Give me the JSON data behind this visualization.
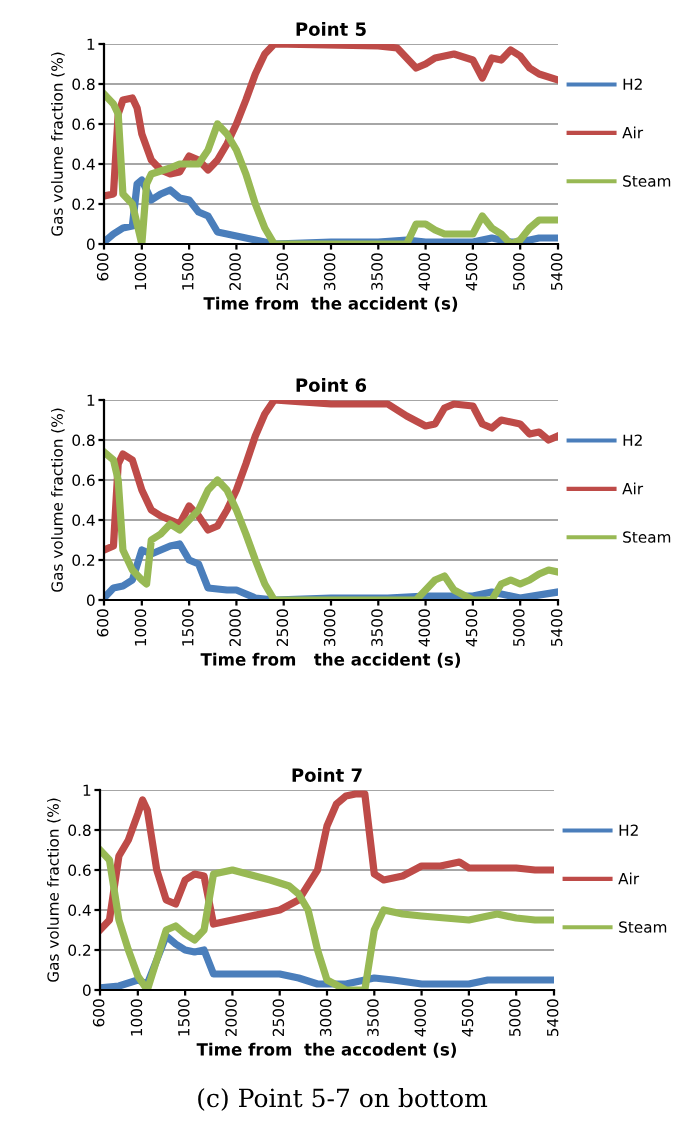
{
  "chart_data": [
    {
      "type": "line",
      "title": "Point 5",
      "xlabel": "Time from  the accident (s)",
      "ylabel": "Gas volume fraction (%)",
      "xlim": [
        600,
        5400
      ],
      "xticks": [
        600,
        1000,
        1500,
        2000,
        2500,
        3000,
        3500,
        4000,
        4500,
        5000,
        5400
      ],
      "ylim": [
        0,
        1
      ],
      "yticks": [
        0,
        {
          "value": 0.2,
          "label": "0.2"
        },
        {
          "value": 0.4,
          "label": "0.4"
        },
        {
          "value": 0.6,
          "label": "0.6"
        },
        {
          "value": 0.8,
          "label": "0.8"
        },
        1
      ],
      "grid": "y",
      "legend": "right",
      "marker": "none",
      "line_style": "solid",
      "series": [
        {
          "name": "H2",
          "color": "#4a7ebb",
          "x": [
            600,
            700,
            800,
            900,
            950,
            1000,
            1100,
            1200,
            1300,
            1400,
            1500,
            1600,
            1700,
            1800,
            1900,
            2000,
            2200,
            2400,
            3000,
            3500,
            3800,
            4000,
            4500,
            4700,
            4900,
            5000,
            5200,
            5400
          ],
          "values": [
            0.01,
            0.05,
            0.08,
            0.09,
            0.3,
            0.32,
            0.22,
            0.25,
            0.27,
            0.23,
            0.22,
            0.16,
            0.14,
            0.06,
            0.05,
            0.04,
            0.02,
            0.0,
            0.01,
            0.01,
            0.02,
            0.01,
            0.01,
            0.03,
            0.01,
            0.01,
            0.03,
            0.03
          ]
        },
        {
          "name": "Air",
          "color": "#be4b48",
          "x": [
            600,
            700,
            750,
            800,
            900,
            950,
            1000,
            1100,
            1200,
            1300,
            1400,
            1500,
            1600,
            1700,
            1800,
            1900,
            2000,
            2100,
            2200,
            2300,
            2400,
            3500,
            3700,
            3900,
            4000,
            4100,
            4300,
            4500,
            4600,
            4700,
            4800,
            4900,
            5000,
            5100,
            5200,
            5400
          ],
          "values": [
            0.24,
            0.25,
            0.65,
            0.72,
            0.73,
            0.68,
            0.55,
            0.42,
            0.37,
            0.35,
            0.36,
            0.44,
            0.42,
            0.37,
            0.42,
            0.5,
            0.6,
            0.72,
            0.85,
            0.95,
            1.0,
            0.99,
            0.98,
            0.88,
            0.9,
            0.93,
            0.95,
            0.92,
            0.83,
            0.93,
            0.92,
            0.97,
            0.94,
            0.88,
            0.85,
            0.82
          ]
        },
        {
          "name": "Steam",
          "color": "#98b954",
          "x": [
            600,
            700,
            750,
            800,
            900,
            950,
            1000,
            1050,
            1100,
            1300,
            1400,
            1600,
            1700,
            1800,
            1900,
            2000,
            2100,
            2200,
            2300,
            2400,
            3800,
            3900,
            4000,
            4100,
            4200,
            4500,
            4600,
            4700,
            4800,
            4900,
            5000,
            5100,
            5200,
            5400
          ],
          "values": [
            0.75,
            0.7,
            0.65,
            0.25,
            0.2,
            0.1,
            0.0,
            0.3,
            0.35,
            0.38,
            0.4,
            0.4,
            0.47,
            0.6,
            0.55,
            0.47,
            0.35,
            0.2,
            0.08,
            0.0,
            0.0,
            0.1,
            0.1,
            0.07,
            0.05,
            0.05,
            0.14,
            0.08,
            0.05,
            0.0,
            0.02,
            0.08,
            0.12,
            0.12
          ]
        }
      ]
    },
    {
      "type": "line",
      "title": "Point 6",
      "xlabel": "Time from   the accident (s)",
      "ylabel": "Gas volume fraction (%)",
      "xlim": [
        600,
        5400
      ],
      "xticks": [
        600,
        1000,
        1500,
        2000,
        2500,
        3000,
        3500,
        4000,
        4500,
        5000,
        5400
      ],
      "ylim": [
        0,
        1
      ],
      "yticks": [
        0,
        {
          "value": 0.2,
          "label": "0.2"
        },
        {
          "value": 0.4,
          "label": "0.4"
        },
        {
          "value": 0.6,
          "label": "0.6"
        },
        {
          "value": 0.8,
          "label": "0.8"
        },
        1
      ],
      "grid": "y",
      "legend": "right",
      "marker": "none",
      "line_style": "solid",
      "series": [
        {
          "name": "H2",
          "color": "#4a7ebb",
          "x": [
            600,
            700,
            800,
            900,
            1000,
            1100,
            1200,
            1300,
            1400,
            1500,
            1600,
            1700,
            1900,
            2000,
            2200,
            2400,
            3000,
            3600,
            4000,
            4500,
            4700,
            5000,
            5400
          ],
          "values": [
            0.01,
            0.06,
            0.07,
            0.1,
            0.25,
            0.23,
            0.25,
            0.27,
            0.28,
            0.2,
            0.18,
            0.06,
            0.05,
            0.05,
            0.01,
            0.0,
            0.01,
            0.01,
            0.02,
            0.02,
            0.04,
            0.01,
            0.04
          ]
        },
        {
          "name": "Air",
          "color": "#be4b48",
          "x": [
            600,
            700,
            750,
            800,
            900,
            1000,
            1100,
            1200,
            1300,
            1400,
            1500,
            1600,
            1700,
            1800,
            1900,
            2000,
            2100,
            2200,
            2300,
            2400,
            3000,
            3600,
            3800,
            4000,
            4100,
            4200,
            4300,
            4500,
            4600,
            4700,
            4800,
            5000,
            5100,
            5200,
            5300,
            5400
          ],
          "values": [
            0.25,
            0.27,
            0.68,
            0.73,
            0.7,
            0.55,
            0.45,
            0.42,
            0.4,
            0.38,
            0.47,
            0.42,
            0.35,
            0.37,
            0.45,
            0.55,
            0.68,
            0.82,
            0.93,
            1.0,
            0.98,
            0.98,
            0.92,
            0.87,
            0.88,
            0.96,
            0.98,
            0.97,
            0.88,
            0.86,
            0.9,
            0.88,
            0.83,
            0.84,
            0.8,
            0.82
          ]
        },
        {
          "name": "Steam",
          "color": "#98b954",
          "x": [
            600,
            700,
            750,
            800,
            900,
            1000,
            1050,
            1100,
            1200,
            1300,
            1400,
            1500,
            1600,
            1700,
            1800,
            1900,
            2000,
            2100,
            2200,
            2300,
            2400,
            3900,
            4000,
            4100,
            4200,
            4300,
            4500,
            4700,
            4800,
            4900,
            5000,
            5100,
            5200,
            5300,
            5400
          ],
          "values": [
            0.74,
            0.7,
            0.6,
            0.25,
            0.15,
            0.1,
            0.08,
            0.3,
            0.33,
            0.38,
            0.35,
            0.4,
            0.45,
            0.55,
            0.6,
            0.55,
            0.45,
            0.33,
            0.2,
            0.08,
            0.0,
            0.0,
            0.05,
            0.1,
            0.12,
            0.05,
            0.0,
            0.0,
            0.08,
            0.1,
            0.08,
            0.1,
            0.13,
            0.15,
            0.14
          ]
        }
      ]
    },
    {
      "type": "line",
      "title": "Point 7",
      "xlabel": "Time from  the accodent (s)",
      "ylabel": "Gas volume fraction (%)",
      "xlim": [
        600,
        5400
      ],
      "xticks": [
        600,
        1000,
        1500,
        2000,
        2500,
        3000,
        3500,
        4000,
        4500,
        5000,
        5400
      ],
      "ylim": [
        0,
        1
      ],
      "yticks": [
        0,
        {
          "value": 0.2,
          "label": "0.2"
        },
        {
          "value": 0.4,
          "label": "0.4"
        },
        {
          "value": 0.6,
          "label": "0.6"
        },
        {
          "value": 0.8,
          "label": "0.8"
        },
        1
      ],
      "grid": "y",
      "legend": "right",
      "marker": "none",
      "line_style": "solid",
      "annotations": [
        "(c) Point 5-7 on bottom"
      ],
      "series": [
        {
          "name": "H2",
          "color": "#4a7ebb",
          "x": [
            600,
            800,
            1000,
            1100,
            1200,
            1300,
            1400,
            1500,
            1600,
            1700,
            1800,
            2000,
            2500,
            2700,
            2900,
            3200,
            3500,
            3700,
            4000,
            4500,
            4700,
            5000,
            5400
          ],
          "values": [
            0.01,
            0.02,
            0.05,
            0.03,
            0.15,
            0.27,
            0.23,
            0.2,
            0.19,
            0.2,
            0.08,
            0.08,
            0.08,
            0.06,
            0.03,
            0.03,
            0.06,
            0.05,
            0.03,
            0.03,
            0.05,
            0.05,
            0.05
          ]
        },
        {
          "name": "Air",
          "color": "#be4b48",
          "x": [
            600,
            700,
            800,
            900,
            1000,
            1050,
            1100,
            1200,
            1300,
            1400,
            1500,
            1600,
            1700,
            1800,
            2000,
            2500,
            2700,
            2900,
            3000,
            3100,
            3200,
            3300,
            3400,
            3500,
            3600,
            3800,
            4000,
            4200,
            4400,
            4500,
            4800,
            5000,
            5200,
            5400
          ],
          "values": [
            0.3,
            0.35,
            0.67,
            0.75,
            0.88,
            0.95,
            0.9,
            0.6,
            0.45,
            0.43,
            0.55,
            0.58,
            0.57,
            0.33,
            0.35,
            0.4,
            0.45,
            0.6,
            0.82,
            0.93,
            0.97,
            0.98,
            0.98,
            0.58,
            0.55,
            0.57,
            0.62,
            0.62,
            0.64,
            0.61,
            0.61,
            0.61,
            0.6,
            0.6
          ]
        },
        {
          "name": "Steam",
          "color": "#98b954",
          "x": [
            600,
            700,
            800,
            900,
            1000,
            1100,
            1200,
            1300,
            1400,
            1500,
            1600,
            1700,
            1800,
            2000,
            2400,
            2600,
            2700,
            2800,
            2900,
            3000,
            3200,
            3400,
            3500,
            3600,
            3800,
            4000,
            4500,
            4800,
            5000,
            5200,
            5400
          ],
          "values": [
            0.7,
            0.65,
            0.35,
            0.2,
            0.07,
            0.0,
            0.15,
            0.3,
            0.32,
            0.28,
            0.25,
            0.3,
            0.58,
            0.6,
            0.55,
            0.52,
            0.48,
            0.4,
            0.2,
            0.05,
            0.0,
            0.0,
            0.3,
            0.4,
            0.38,
            0.37,
            0.35,
            0.38,
            0.36,
            0.35,
            0.35
          ]
        }
      ]
    }
  ]
}
